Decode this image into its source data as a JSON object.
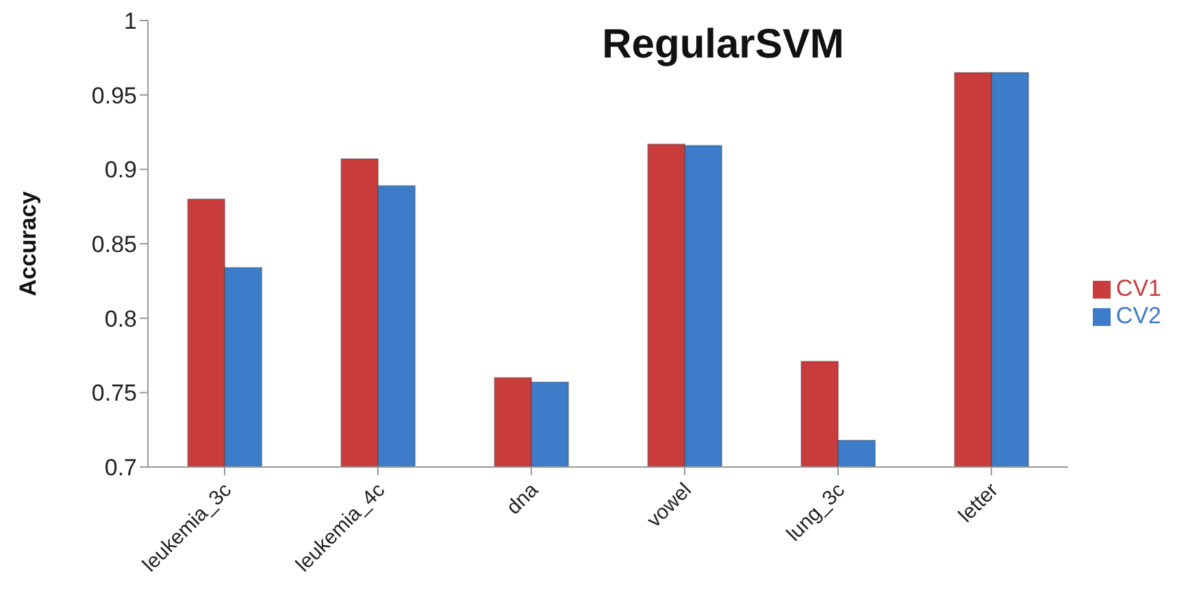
{
  "chart_data": {
    "type": "bar",
    "title": "RegularSVM",
    "ylabel": "Accuracy",
    "categories": [
      "leukemia_3c",
      "leukemia_4c",
      "dna",
      "vowel",
      "lung_3c",
      "letter"
    ],
    "series": [
      {
        "name": "CV1",
        "color": "#c83c3c",
        "values": [
          0.88,
          0.907,
          0.76,
          0.917,
          0.771,
          0.965
        ]
      },
      {
        "name": "CV2",
        "color": "#3c7cc8",
        "values": [
          0.834,
          0.889,
          0.757,
          0.916,
          0.718,
          0.965
        ]
      }
    ],
    "ylim": [
      0.7,
      1
    ],
    "yticks": [
      0.7,
      0.75,
      0.8,
      0.85,
      0.9,
      0.95,
      1
    ],
    "grid": false,
    "legend": "right"
  }
}
